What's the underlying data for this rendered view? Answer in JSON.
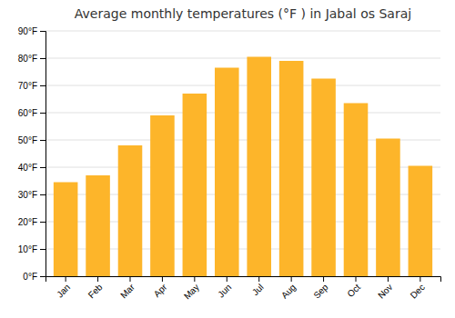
{
  "chart_data": {
    "type": "bar",
    "title": "Average monthly temperatures (°F ) in Jabal os Saraj",
    "categories": [
      "Jan",
      "Feb",
      "Mar",
      "Apr",
      "May",
      "Jun",
      "Jul",
      "Aug",
      "Sep",
      "Oct",
      "Nov",
      "Dec"
    ],
    "values": [
      34.5,
      37.0,
      48.0,
      59.0,
      67.0,
      76.5,
      80.5,
      79.0,
      72.5,
      63.5,
      50.5,
      40.5
    ],
    "color": "#FDB52A",
    "ylim": [
      0,
      90
    ],
    "yticks": [
      {
        "value": 0,
        "label": "0°F"
      },
      {
        "value": 10,
        "label": "10°F"
      },
      {
        "value": 20,
        "label": "20°F"
      },
      {
        "value": 30,
        "label": "30°F"
      },
      {
        "value": 40,
        "label": "40°F"
      },
      {
        "value": 50,
        "label": "50°F"
      },
      {
        "value": 60,
        "label": "60°F"
      },
      {
        "value": 70,
        "label": "70°F"
      },
      {
        "value": 80,
        "label": "80°F"
      },
      {
        "value": 90,
        "label": "90°F"
      }
    ],
    "grid": true
  }
}
